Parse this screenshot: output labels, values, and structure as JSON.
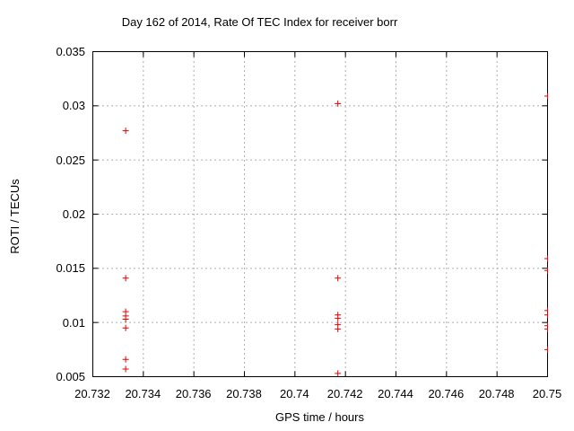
{
  "window": {
    "background": "#ffffff"
  },
  "chart_data": {
    "type": "scatter",
    "title": "Day 162 of 2014, Rate Of TEC Index for receiver borr",
    "xlabel": "GPS time / hours",
    "ylabel": "ROTI / TECUs",
    "xlim": [
      20.732,
      20.75
    ],
    "ylim": [
      0.005,
      0.035
    ],
    "grid": true,
    "legend_position": "none",
    "marker": "plus",
    "colors": {
      "marker": "#e60000",
      "grid": "#b0b0b0",
      "axis": "#000000",
      "text": "#000000"
    },
    "x_ticks": [
      {
        "value": 20.732,
        "label": "20.732"
      },
      {
        "value": 20.734,
        "label": "20.734"
      },
      {
        "value": 20.736,
        "label": "20.736"
      },
      {
        "value": 20.738,
        "label": "20.738"
      },
      {
        "value": 20.74,
        "label": "20.74"
      },
      {
        "value": 20.742,
        "label": "20.742"
      },
      {
        "value": 20.744,
        "label": "20.744"
      },
      {
        "value": 20.746,
        "label": "20.746"
      },
      {
        "value": 20.748,
        "label": "20.748"
      },
      {
        "value": 20.75,
        "label": "20.75"
      }
    ],
    "y_ticks": [
      {
        "value": 0.005,
        "label": "0.005"
      },
      {
        "value": 0.01,
        "label": "0.01"
      },
      {
        "value": 0.015,
        "label": "0.015"
      },
      {
        "value": 0.02,
        "label": "0.02"
      },
      {
        "value": 0.025,
        "label": "0.025"
      },
      {
        "value": 0.03,
        "label": "0.03"
      },
      {
        "value": 0.035,
        "label": "0.035"
      }
    ],
    "series": [
      {
        "name": "ROTI",
        "points": [
          [
            20.7333,
            0.0277
          ],
          [
            20.7333,
            0.0141
          ],
          [
            20.7333,
            0.011
          ],
          [
            20.7333,
            0.0106
          ],
          [
            20.7333,
            0.0103
          ],
          [
            20.7333,
            0.0095
          ],
          [
            20.7333,
            0.0066
          ],
          [
            20.7333,
            0.0057
          ],
          [
            20.7417,
            0.0302
          ],
          [
            20.7417,
            0.0141
          ],
          [
            20.7417,
            0.0107
          ],
          [
            20.7417,
            0.0104
          ],
          [
            20.7417,
            0.0098
          ],
          [
            20.7417,
            0.0094
          ],
          [
            20.7417,
            0.0053
          ],
          [
            20.75,
            0.0309
          ],
          [
            20.75,
            0.0159
          ],
          [
            20.75,
            0.0148
          ],
          [
            20.75,
            0.0111
          ],
          [
            20.75,
            0.0107
          ],
          [
            20.75,
            0.0097
          ],
          [
            20.75,
            0.0094
          ],
          [
            20.75,
            0.0075
          ]
        ]
      }
    ]
  }
}
